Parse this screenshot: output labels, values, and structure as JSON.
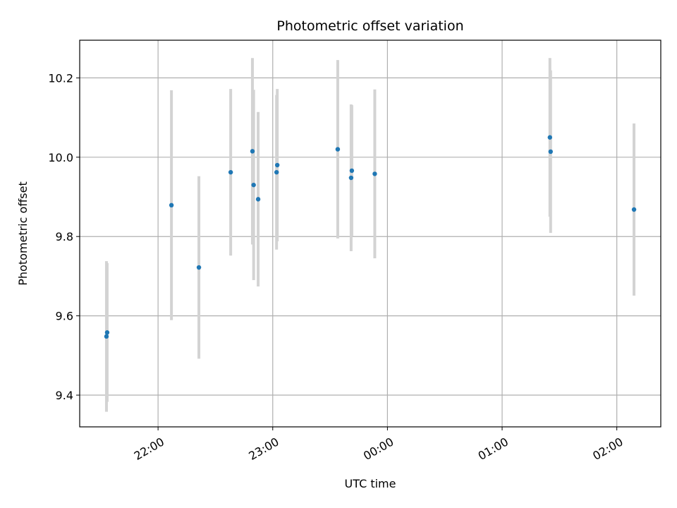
{
  "chart_data": {
    "type": "scatter",
    "title": "Photometric offset variation",
    "xlabel": "UTC time",
    "ylabel": "Photometric offset",
    "x_unit": "UTC",
    "xlim": [
      "21:19",
      "02:23"
    ],
    "ylim": [
      9.32,
      10.295
    ],
    "x_ticks": [
      "22:00",
      "23:00",
      "00:00",
      "01:00",
      "02:00"
    ],
    "y_ticks": [
      9.4,
      9.6,
      9.8,
      10.0,
      10.2
    ],
    "grid": true,
    "colors": {
      "point": "#1f77b4",
      "errorbar": "#d3d3d3",
      "grid": "#b0b0b0"
    },
    "points": [
      {
        "x": "21:33",
        "y": 9.548,
        "err": 0.19
      },
      {
        "x": "21:33",
        "y": 9.558,
        "err": 0.175
      },
      {
        "x": "22:07",
        "y": 9.879,
        "err": 0.29
      },
      {
        "x": "22:21",
        "y": 9.722,
        "err": 0.23
      },
      {
        "x": "22:38",
        "y": 9.962,
        "err": 0.21
      },
      {
        "x": "22:49",
        "y": 10.015,
        "err": 0.235
      },
      {
        "x": "22:50",
        "y": 9.93,
        "err": 0.24
      },
      {
        "x": "22:52",
        "y": 9.894,
        "err": 0.22
      },
      {
        "x": "23:02",
        "y": 9.962,
        "err": 0.195
      },
      {
        "x": "23:02",
        "y": 9.98,
        "err": 0.192
      },
      {
        "x": "23:34",
        "y": 10.02,
        "err": 0.225
      },
      {
        "x": "23:41",
        "y": 9.966,
        "err": 0.165
      },
      {
        "x": "23:41",
        "y": 9.948,
        "err": 0.185
      },
      {
        "x": "23:53",
        "y": 9.958,
        "err": 0.213
      },
      {
        "x": "01:25",
        "y": 10.05,
        "err": 0.2
      },
      {
        "x": "01:25",
        "y": 10.014,
        "err": 0.205
      },
      {
        "x": "02:09",
        "y": 9.868,
        "err": 0.217
      }
    ]
  }
}
